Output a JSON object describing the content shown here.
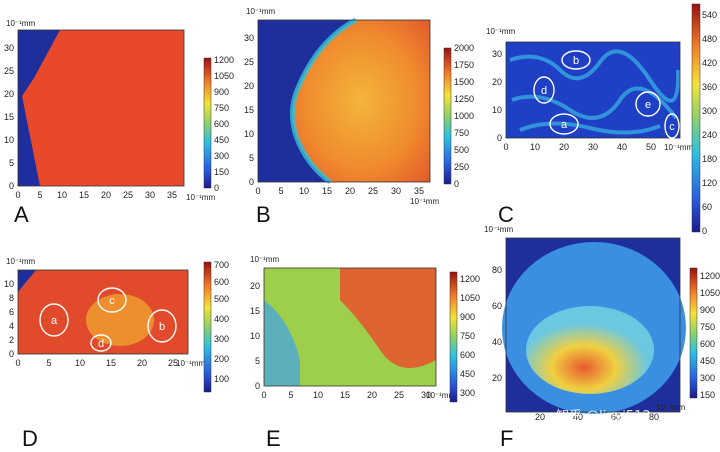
{
  "watermark": "知乎 @linyi512",
  "chart_data": [
    {
      "type": "heatmap",
      "panel_label": "A",
      "x_ticks": [
        "0",
        "5",
        "10",
        "15",
        "20",
        "25",
        "30",
        "35"
      ],
      "y_ticks": [
        "0",
        "5",
        "10",
        "15",
        "20",
        "25",
        "30"
      ],
      "x_unit": "10⁻¹mm",
      "y_unit": "10⁻¹mm",
      "colorbar_ticks": [
        "0",
        "150",
        "300",
        "450",
        "600",
        "750",
        "900",
        "1050",
        "1200"
      ],
      "fill_color": "#e8492a",
      "rois": []
    },
    {
      "type": "heatmap",
      "panel_label": "B",
      "x_ticks": [
        "0",
        "5",
        "10",
        "15",
        "20",
        "25",
        "30",
        "35"
      ],
      "y_ticks": [
        "0",
        "5",
        "10",
        "15",
        "20",
        "25",
        "30"
      ],
      "x_unit": "10⁻¹mm",
      "y_unit": "10⁻¹mm",
      "colorbar_ticks": [
        "0",
        "250",
        "500",
        "750",
        "1000",
        "1250",
        "1500",
        "1750",
        "2000"
      ],
      "fill_color": "#ef7a2e",
      "rois": []
    },
    {
      "type": "heatmap",
      "panel_label": "C",
      "x_ticks": [
        "0",
        "10",
        "20",
        "30",
        "40",
        "50"
      ],
      "y_ticks": [
        "0",
        "10",
        "20",
        "30"
      ],
      "x_unit": "10⁻¹mm",
      "y_unit": "10⁻¹mm",
      "colorbar_ticks": [
        "0",
        "60",
        "120",
        "180",
        "240",
        "300",
        "360",
        "420",
        "480",
        "540"
      ],
      "fill_color": "#1f3fc4",
      "rois": [
        "a",
        "b",
        "c",
        "d",
        "e"
      ]
    },
    {
      "type": "heatmap",
      "panel_label": "D",
      "x_ticks": [
        "0",
        "5",
        "10",
        "15",
        "20",
        "25"
      ],
      "y_ticks": [
        "0",
        "2",
        "4",
        "6",
        "8",
        "10"
      ],
      "x_unit": "10⁻¹mm",
      "y_unit": "10⁻¹mm",
      "colorbar_ticks": [
        "100",
        "200",
        "300",
        "400",
        "500",
        "600",
        "700"
      ],
      "fill_color": "#e24a2c",
      "rois": [
        "a",
        "b",
        "c",
        "d"
      ]
    },
    {
      "type": "heatmap",
      "panel_label": "E",
      "x_ticks": [
        "0",
        "5",
        "10",
        "15",
        "20",
        "25",
        "30"
      ],
      "y_ticks": [
        "0",
        "5",
        "10",
        "15",
        "20"
      ],
      "x_unit": "10⁻¹mm",
      "y_unit": "10⁻¹mm",
      "colorbar_ticks": [
        "300",
        "450",
        "600",
        "750",
        "900",
        "1050",
        "1200"
      ],
      "fill_color": "#9ecf4a",
      "rois": []
    },
    {
      "type": "heatmap",
      "panel_label": "F",
      "x_ticks": [
        "20",
        "40",
        "60",
        "80"
      ],
      "y_ticks": [
        "20",
        "40",
        "60",
        "80"
      ],
      "x_unit": "10⁻¹mm",
      "y_unit": "10⁻¹mm",
      "colorbar_ticks": [
        "150",
        "300",
        "450",
        "600",
        "750",
        "900",
        "1050",
        "1200"
      ],
      "fill_color": "#2f7fd8",
      "rois": []
    }
  ]
}
